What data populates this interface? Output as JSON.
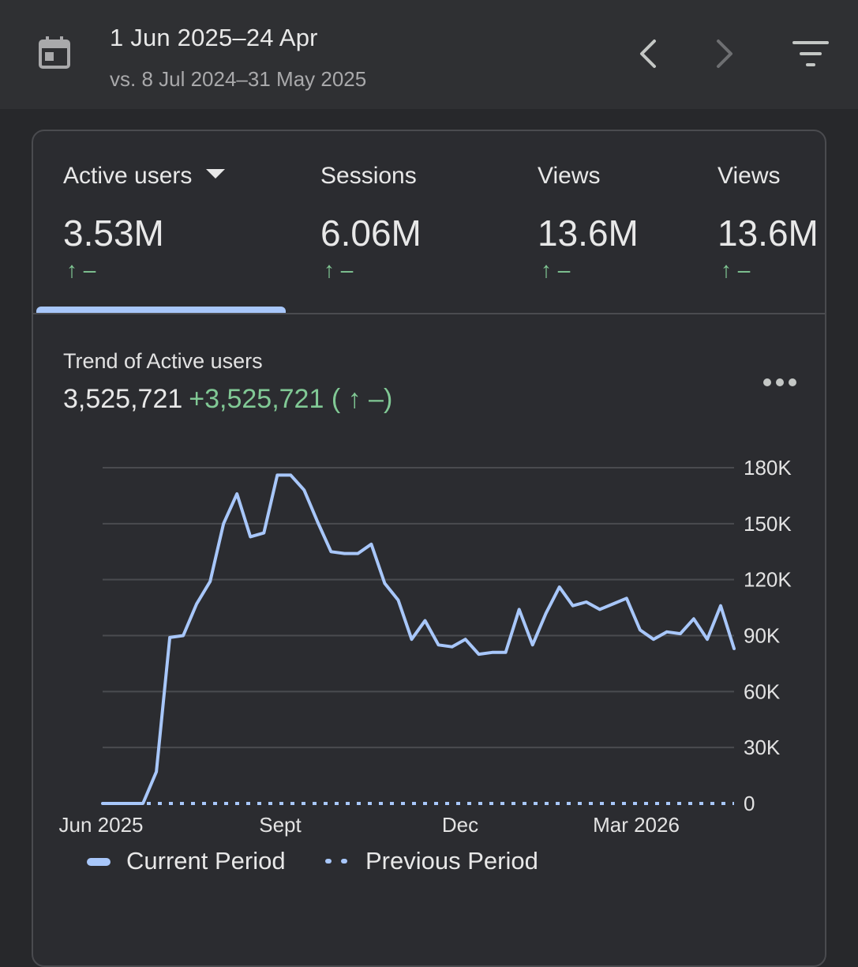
{
  "header": {
    "date_range": "1 Jun 2025–24 Apr",
    "compare_range": "vs. 8 Jul 2024–31 May 2025",
    "icons": {
      "calendar": "calendar-icon",
      "prev": "chevron-left-icon",
      "next": "chevron-right-icon",
      "filter": "filter-icon"
    }
  },
  "metrics": [
    {
      "label": "Active users",
      "value": "3.53M",
      "change": "↑ –",
      "selected": true
    },
    {
      "label": "Sessions",
      "value": "6.06M",
      "change": "↑ –"
    },
    {
      "label": "Views",
      "value": "13.6M",
      "change": "↑ –"
    },
    {
      "label": "Views",
      "value": "13.6M",
      "change": "↑ –"
    }
  ],
  "trend": {
    "title": "Trend of Active users",
    "total": "3,525,721",
    "delta": "+3,525,721 ( ↑ –)"
  },
  "colors": {
    "current_line": "#a8c7fa",
    "positive": "#81c995",
    "grid": "#4a4b4f"
  },
  "chart_data": {
    "type": "line",
    "title": "Trend of Active users",
    "x_tick_labels": [
      "Jun 2025",
      "Sept",
      "Dec",
      "Mar 2026"
    ],
    "y_tick_labels": [
      "0",
      "30K",
      "60K",
      "90K",
      "120K",
      "150K",
      "180K"
    ],
    "ylim": [
      0,
      180000
    ],
    "legend": {
      "position": "bottom",
      "current": "Current Period",
      "previous": "Previous Period"
    },
    "series": [
      {
        "name": "Current Period",
        "style": "solid",
        "values": [
          0,
          0,
          0,
          0,
          17000,
          89000,
          90000,
          107000,
          119000,
          150000,
          166000,
          143000,
          145000,
          176000,
          176000,
          168000,
          151000,
          135000,
          134000,
          134000,
          139000,
          118000,
          109000,
          88000,
          98000,
          85000,
          84000,
          88000,
          80000,
          81000,
          81000,
          104000,
          85000,
          102000,
          116000,
          106000,
          108000,
          104000,
          107000,
          110000,
          93000,
          88000,
          92000,
          91000,
          99000,
          88000,
          106000,
          83000
        ]
      },
      {
        "name": "Previous Period",
        "style": "dotted",
        "values": [
          0,
          0,
          0,
          0,
          0,
          0,
          0,
          0,
          0,
          0,
          0,
          0,
          0,
          0,
          0,
          0,
          0,
          0,
          0,
          0,
          0,
          0,
          0,
          0,
          0,
          0,
          0,
          0,
          0,
          0,
          0,
          0,
          0,
          0,
          0,
          0,
          0,
          0,
          0,
          0,
          0,
          0,
          0,
          0,
          0,
          0,
          0,
          0
        ]
      }
    ]
  }
}
